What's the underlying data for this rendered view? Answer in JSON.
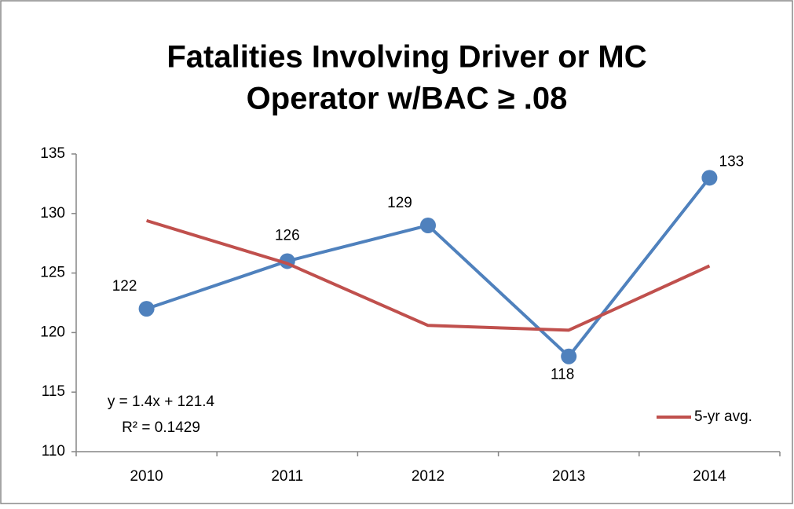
{
  "chart_data": {
    "type": "line",
    "title": [
      "Fatalities Involving Driver or MC",
      "Operator w/BAC ≥ .08"
    ],
    "categories": [
      "2010",
      "2011",
      "2012",
      "2013",
      "2014"
    ],
    "series": [
      {
        "color": "#4f81bd",
        "values": [
          122,
          126,
          129,
          118,
          133
        ]
      },
      {
        "name": "5-yr avg.",
        "color": "#c0504d",
        "values": [
          129.4,
          125.8,
          120.6,
          120.2,
          125.6
        ]
      }
    ],
    "ylim": [
      110,
      135
    ],
    "yticks": [
      110,
      115,
      120,
      125,
      130,
      135
    ],
    "annotations": [
      "y = 1.4x + 121.4",
      "R² = 0.1429"
    ],
    "grid": false,
    "legend": "lower right"
  }
}
